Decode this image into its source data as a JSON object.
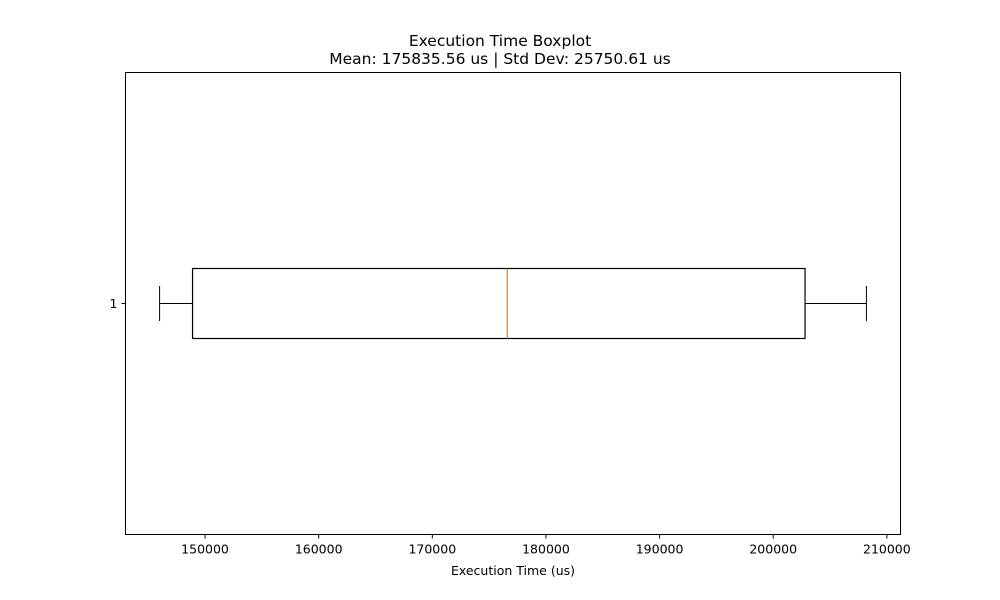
{
  "chart_data": {
    "type": "boxplot",
    "title": "Execution Time Boxplot",
    "subtitle": "Mean: 175835.56 us | Std Dev: 25750.61 us",
    "xlabel": "Execution Time (us)",
    "ylabel": "",
    "orientation": "horizontal",
    "xlim": [
      143000,
      211200
    ],
    "x_ticks": [
      150000,
      160000,
      170000,
      180000,
      190000,
      200000,
      210000
    ],
    "y_ticks": [
      "1"
    ],
    "grid": false,
    "series": [
      {
        "category": "1",
        "whisker_low": 146000,
        "q1": 148900,
        "median": 176600,
        "q3": 202800,
        "whisker_high": 208200
      }
    ],
    "colors": {
      "box": "#000000",
      "median": "#ff7f0e"
    }
  }
}
